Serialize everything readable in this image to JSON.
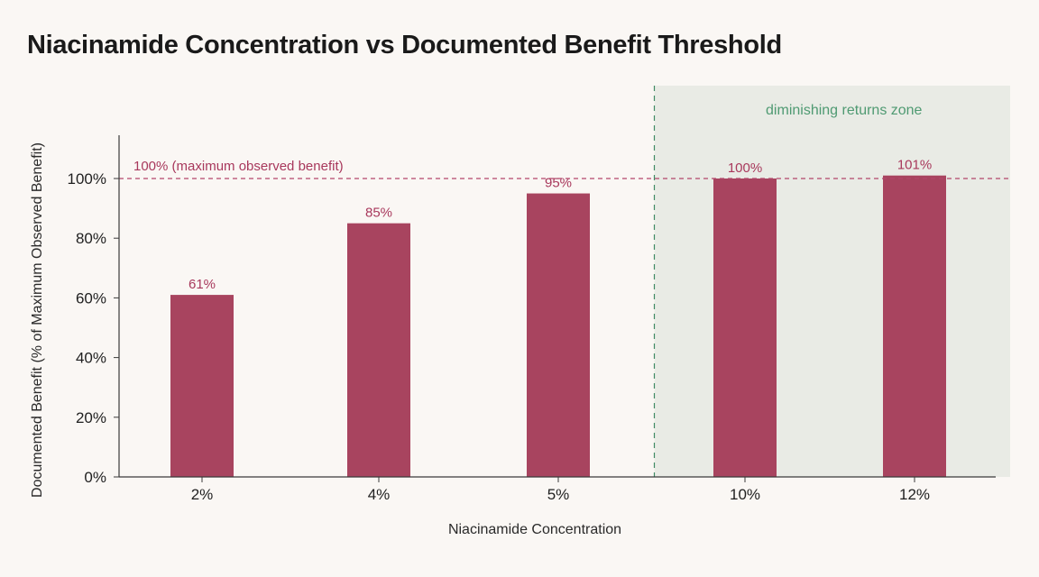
{
  "chart_data": {
    "type": "bar",
    "title": "Niacinamide Concentration vs Documented Benefit Threshold",
    "xlabel": "Niacinamide Concentration",
    "ylabel": "Documented Benefit (% of Maximum Observed Benefit)",
    "categories": [
      "2%",
      "4%",
      "5%",
      "10%",
      "12%"
    ],
    "values": [
      61,
      85,
      95,
      100,
      101
    ],
    "data_labels": [
      "61%",
      "85%",
      "95%",
      "100%",
      "101%"
    ],
    "ylim": [
      0,
      100
    ],
    "yticks": [
      0,
      20,
      40,
      60,
      80,
      100
    ],
    "ytick_labels": [
      "0%",
      "20%",
      "40%",
      "60%",
      "80%",
      "100%"
    ],
    "reference_line": {
      "value": 100,
      "label": "100% (maximum observed benefit)"
    },
    "shaded_zone": {
      "label": "diminishing returns zone",
      "from_category": "10%"
    },
    "grid": false,
    "legend": "none",
    "colors": {
      "bar": "#a8445f",
      "label": "#a8385c",
      "reference": "#b3466a",
      "zone_fill": "#e9ebe5",
      "zone_line": "#3f8a64",
      "zone_text": "#4f9a72",
      "axis": "#3a3a3a"
    }
  }
}
